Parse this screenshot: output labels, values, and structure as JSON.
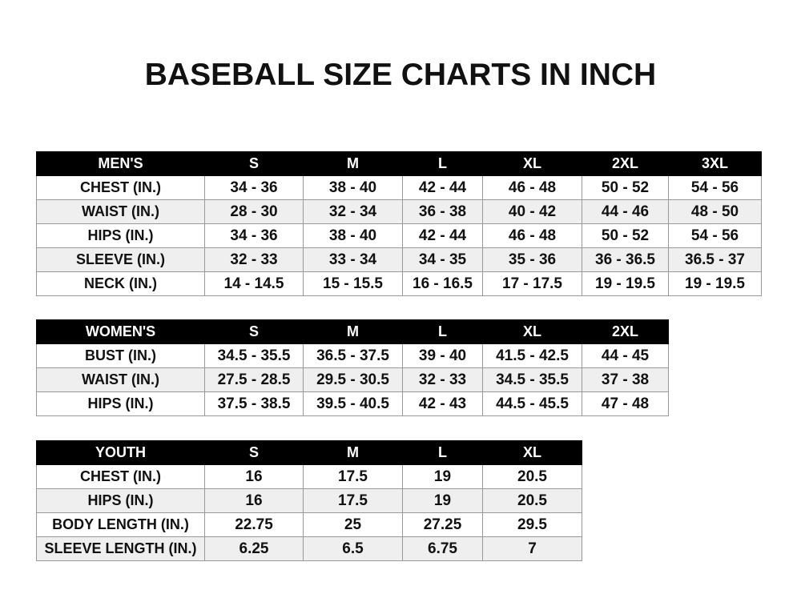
{
  "title": "BASEBALL SIZE CHARTS IN INCH",
  "tables": [
    {
      "header": [
        "MEN'S",
        "S",
        "M",
        "L",
        "XL",
        "2XL",
        "3XL"
      ],
      "rows": [
        [
          "CHEST (IN.)",
          "34 - 36",
          "38 - 40",
          "42 - 44",
          "46 - 48",
          "50 - 52",
          "54 - 56"
        ],
        [
          "WAIST (IN.)",
          "28 - 30",
          "32 - 34",
          "36 - 38",
          "40 - 42",
          "44 - 46",
          "48 - 50"
        ],
        [
          "HIPS (IN.)",
          "34 - 36",
          "38 - 40",
          "42 - 44",
          "46 - 48",
          "50 - 52",
          "54 - 56"
        ],
        [
          "SLEEVE (IN.)",
          "32 - 33",
          "33 - 34",
          "34 - 35",
          "35 - 36",
          "36 - 36.5",
          "36.5 - 37"
        ],
        [
          "NECK (IN.)",
          "14 - 14.5",
          "15 - 15.5",
          "16 - 16.5",
          "17 - 17.5",
          "19 - 19.5",
          "19 - 19.5"
        ]
      ]
    },
    {
      "header": [
        "WOMEN'S",
        "S",
        "M",
        "L",
        "XL",
        "2XL"
      ],
      "rows": [
        [
          "BUST (IN.)",
          "34.5 - 35.5",
          "36.5 - 37.5",
          "39 - 40",
          "41.5 - 42.5",
          "44 - 45"
        ],
        [
          "WAIST (IN.)",
          "27.5 - 28.5",
          "29.5 - 30.5",
          "32 - 33",
          "34.5 - 35.5",
          "37 - 38"
        ],
        [
          "HIPS (IN.)",
          "37.5 - 38.5",
          "39.5 - 40.5",
          "42 - 43",
          "44.5 - 45.5",
          "47 - 48"
        ]
      ]
    },
    {
      "header": [
        "YOUTH",
        "S",
        "M",
        "L",
        "XL"
      ],
      "rows": [
        [
          "CHEST (IN.)",
          "16",
          "17.5",
          "19",
          "20.5"
        ],
        [
          "HIPS (IN.)",
          "16",
          "17.5",
          "19",
          "20.5"
        ],
        [
          "BODY LENGTH (IN.)",
          "22.75",
          "25",
          "27.25",
          "29.5"
        ],
        [
          "SLEEVE LENGTH (IN.)",
          "6.25",
          "6.5",
          "6.75",
          "7"
        ]
      ]
    }
  ]
}
